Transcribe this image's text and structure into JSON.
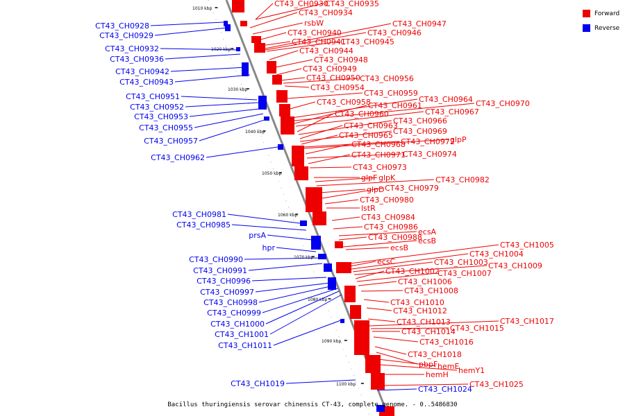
{
  "caption": "Bacillus thuringiensis serovar chinensis CT-43, complete genome. - 0..5486830",
  "legend": {
    "forward": {
      "label": "Forward",
      "color": "#ee0000"
    },
    "reverse": {
      "label": "Reverse",
      "color": "#0000ee"
    }
  },
  "scale_labels": [
    "1010 kbp",
    "1020 kbp",
    "1030 kbp",
    "1040 kbp",
    "1050 kbp",
    "1060 kbp",
    "1070 kbp",
    "1080 kbp",
    "1090 kbp",
    "1100 kbp"
  ],
  "reverse_genes": [
    "CT43_CH0928",
    "CT43_CH0929",
    "CT43_CH0932",
    "CT43_CH0936",
    "CT43_CH0942",
    "CT43_CH0943",
    "CT43_CH0951",
    "CT43_CH0952",
    "CT43_CH0953",
    "CT43_CH0955",
    "CT43_CH0957",
    "CT43_CH0962",
    "CT43_CH0981",
    "CT43_CH0985",
    "prsA",
    "hpr",
    "CT43_CH0990",
    "CT43_CH0991",
    "CT43_CH0996",
    "CT43_CH0997",
    "CT43_CH0998",
    "CT43_CH0999",
    "CT43_CH1000",
    "CT43_CH1001",
    "CT43_CH1011",
    "CT43_CH1019",
    "CT43_CH1024"
  ],
  "forward_genes": [
    "CT43_CH0930",
    "CT43_CH0935",
    "CT43_CH0934",
    "rsbW",
    "CT43_CH0947",
    "CT43_CH0940",
    "CT43_CH0946",
    "CT43_CH0941",
    "CT43_CH0945",
    "CT43_CH0944",
    "CT43_CH0948",
    "CT43_CH0949",
    "CT43_CH0950",
    "CT43_CH0956",
    "CT43_CH0954",
    "CT43_CH0959",
    "CT43_CH0958",
    "CT43_CH0964",
    "CT43_CH0970",
    "CT43_CH0961",
    "CT43_CH0967",
    "CT43_CH0960",
    "CT43_CH0966",
    "CT43_CH0963",
    "CT43_CH0969",
    "CT43_CH0965",
    "CT43_CH0972",
    "glpP",
    "CT43_CH0968",
    "CT43_CH0974",
    "CT43_CH0971",
    "CT43_CH0973",
    "glpF",
    "glpK",
    "CT43_CH0982",
    "glpD",
    "CT43_CH0979",
    "CT43_CH0980",
    "lstR",
    "CT43_CH0984",
    "CT43_CH0986",
    "ecsA",
    "CT43_CH0988",
    "ecsB",
    "ecsB",
    "CT43_CH1005",
    "ecsC",
    "CT43_CH1004",
    "CT43_CH1003",
    "CT43_CH1009",
    "CT43_CH1002",
    "CT43_CH1007",
    "CT43_CH1006",
    "CT43_CH1008",
    "CT43_CH1010",
    "CT43_CH1012",
    "CT43_CH1013",
    "CT43_CH1017",
    "CT43_CH1015",
    "CT43_CH1014",
    "CT43_CH1016",
    "CT43_CH1018",
    "pbpF",
    "hemE",
    "hemY1",
    "hemH",
    "CT43_CH1025"
  ]
}
